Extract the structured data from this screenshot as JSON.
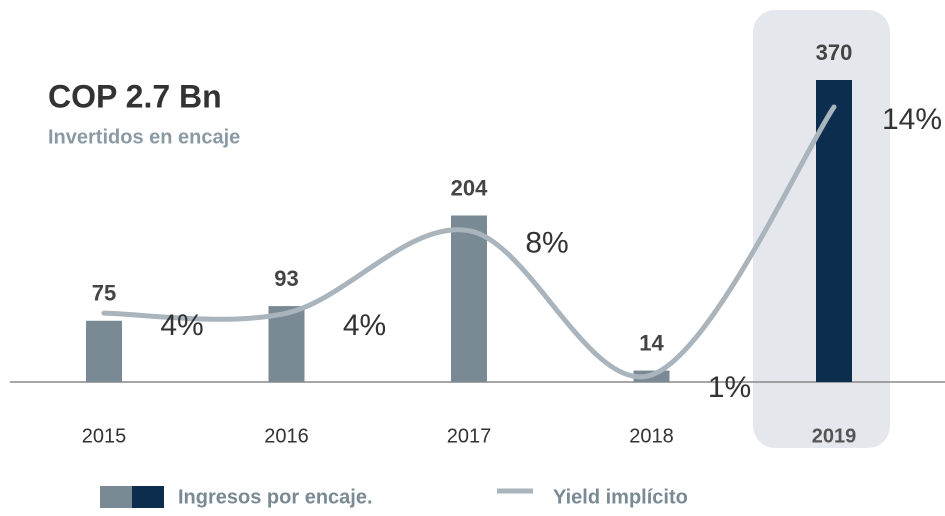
{
  "chart_data": {
    "type": "bar",
    "title": "COP 2.7 Bn",
    "subtitle": "Invertidos en encaje",
    "categories": [
      "2015",
      "2016",
      "2017",
      "2018",
      "2019"
    ],
    "series": [
      {
        "name": "Ingresos por encaje.",
        "color": "#798a94",
        "colors": [
          "#798a94",
          "#798a94",
          "#798a94",
          "#798a94",
          "#0d2d4f"
        ],
        "values": [
          75,
          93,
          204,
          14,
          370
        ]
      },
      {
        "name": "Yield implícito",
        "type": "line",
        "axis": "y2",
        "color": "#a9b4bc",
        "values": [
          4,
          4,
          8,
          1,
          14
        ],
        "value_labels": [
          "4%",
          "4%",
          "8%",
          "1%",
          "14%"
        ]
      }
    ]
  }
}
